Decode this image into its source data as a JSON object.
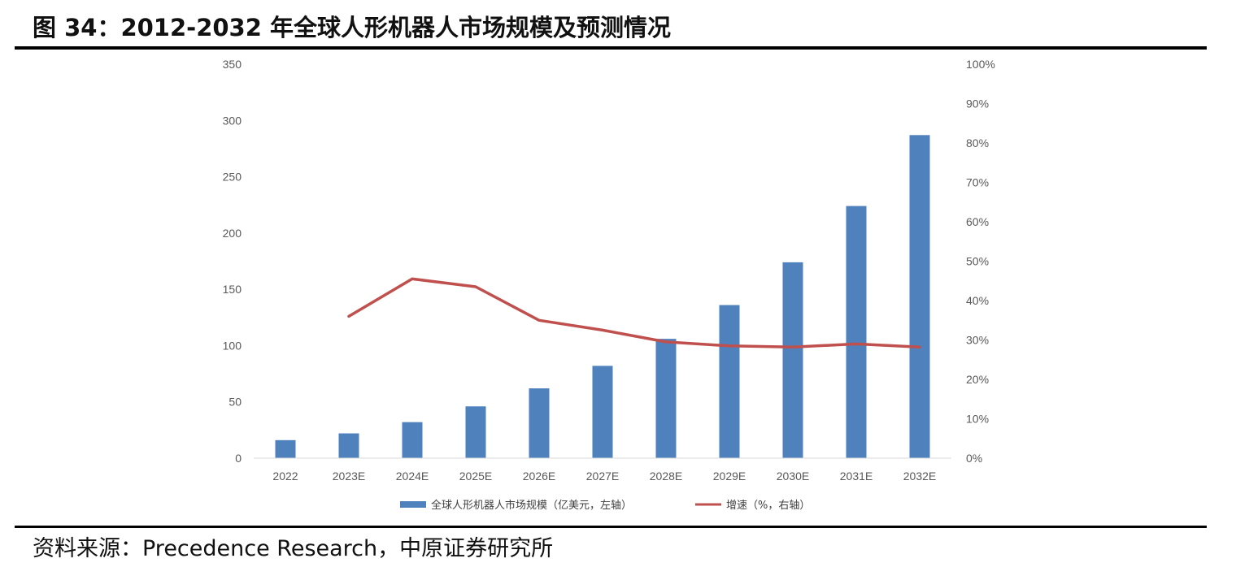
{
  "header": {
    "title": "图 34：2012-2032 年全球人形机器人市场规模及预测情况"
  },
  "footer": {
    "source": "资料来源：Precedence Research，中原证券研究所"
  },
  "chart_data": {
    "type": "bar+line",
    "categories": [
      "2022",
      "2023E",
      "2024E",
      "2025E",
      "2026E",
      "2027E",
      "2028E",
      "2029E",
      "2030E",
      "2031E",
      "2032E"
    ],
    "series": [
      {
        "name": "全球人形机器人市场规模（亿美元，左轴）",
        "type": "bar",
        "axis": "left",
        "color": "#4F81BD",
        "values": [
          16,
          22,
          32,
          46,
          62,
          82,
          106,
          136,
          174,
          224,
          287
        ]
      },
      {
        "name": "增速（%，右轴）",
        "type": "line",
        "axis": "right",
        "color": "#C0504D",
        "values": [
          null,
          36,
          45.5,
          43.5,
          35,
          32.5,
          29.5,
          28.5,
          28.2,
          29,
          28.2
        ]
      }
    ],
    "y_left": {
      "ylim": [
        0,
        350
      ],
      "ticks": [
        "0",
        "50",
        "100",
        "150",
        "200",
        "250",
        "300",
        "350"
      ]
    },
    "y_right": {
      "ylim": [
        0,
        100
      ],
      "ticks": [
        "0%",
        "10%",
        "20%",
        "30%",
        "40%",
        "50%",
        "60%",
        "70%",
        "80%",
        "90%",
        "100%"
      ]
    },
    "legend": "bottom-center",
    "grid": false
  }
}
